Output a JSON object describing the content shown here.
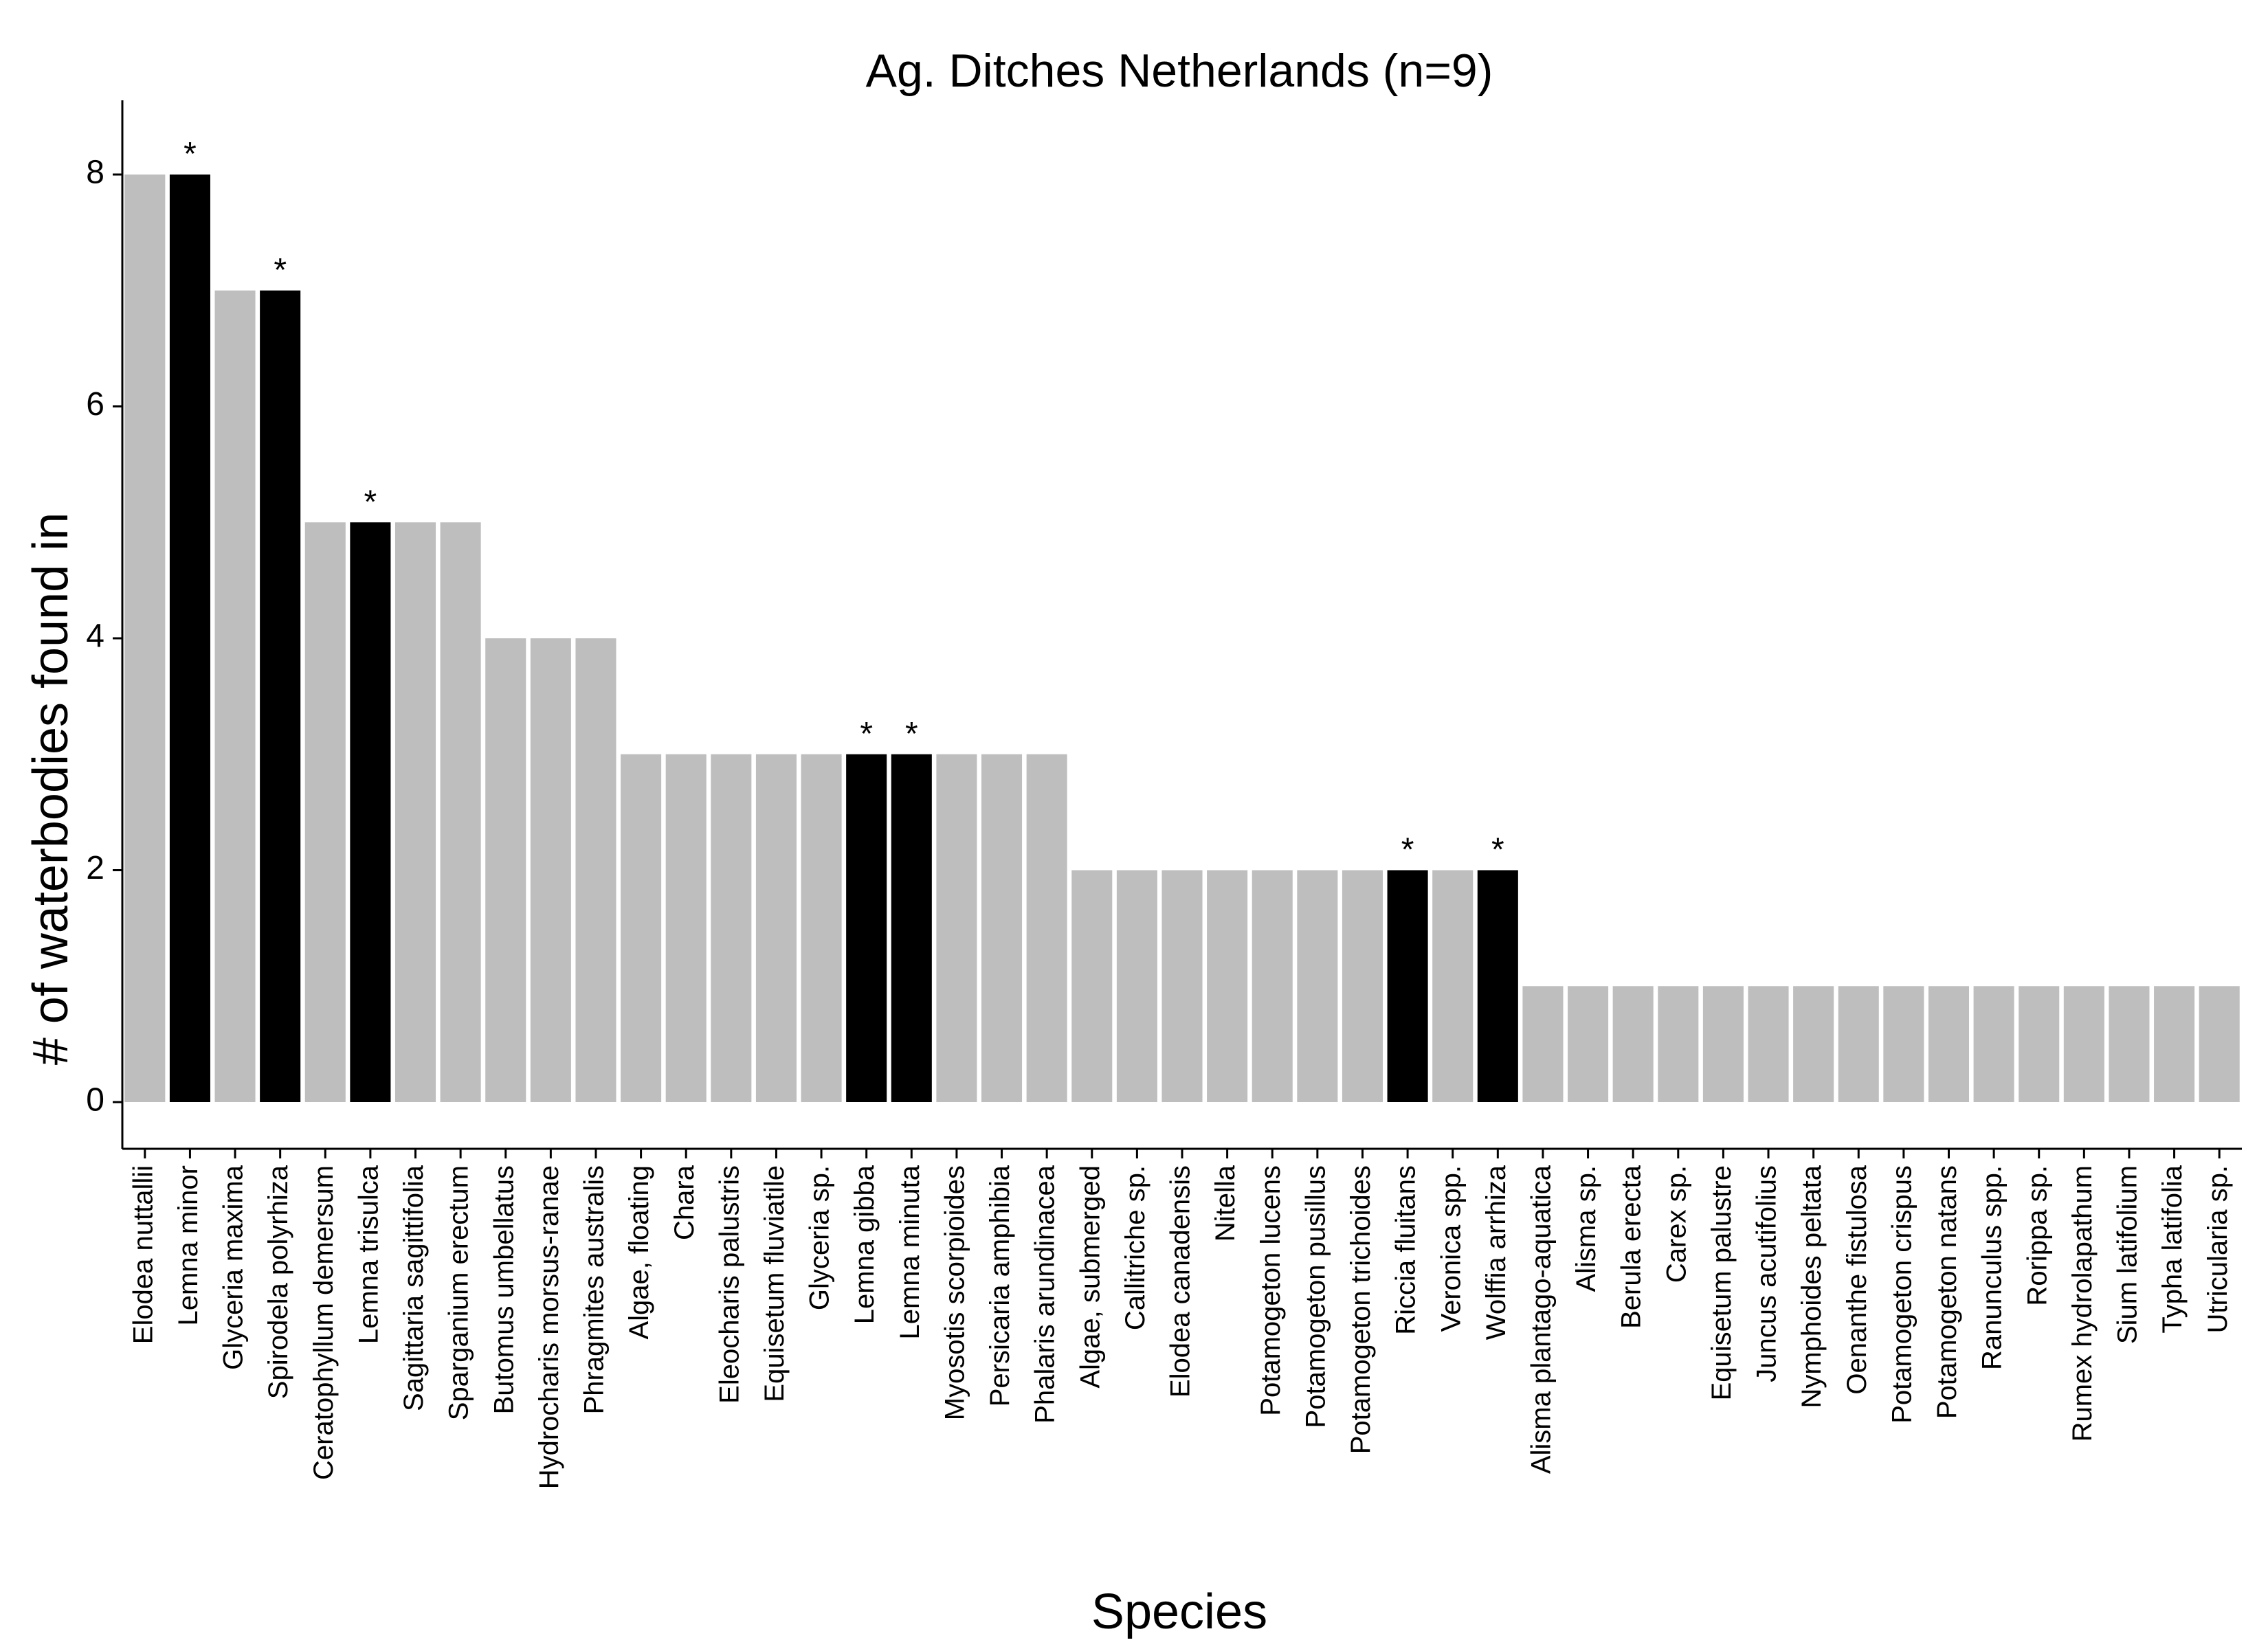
{
  "chart_data": {
    "type": "bar",
    "title": "Ag. Ditches Netherlands (n=9)",
    "xlabel": "Species",
    "ylabel": "# of waterbodies found in",
    "ylim": [
      0,
      8.6
    ],
    "yticks": [
      0,
      2,
      4,
      6,
      8
    ],
    "grid": false,
    "legend": "none",
    "colors": {
      "default": "#bebebe",
      "highlight": "#000000"
    },
    "marker_symbol": "*",
    "categories": [
      "Elodea nuttallii",
      "Lemna minor",
      "Glyceria maxima",
      "Spirodela polyrhiza",
      "Ceratophyllum demersum",
      "Lemna trisulca",
      "Sagittaria sagittifolia",
      "Sparganium erectum",
      "Butomus umbellatus",
      "Hydrocharis morsus-ranae",
      "Phragmites australis",
      "Algae, floating",
      "Chara",
      "Eleocharis palustris",
      "Equisetum fluviatile",
      "Glyceria sp.",
      "Lemna gibba",
      "Lemna minuta",
      "Myosotis scorpioides",
      "Persicaria amphibia",
      "Phalaris arundinacea",
      "Algae, submerged",
      "Callitriche sp.",
      "Elodea canadensis",
      "Nitella",
      "Potamogeton lucens",
      "Potamogeton pusillus",
      "Potamogeton trichoides",
      "Riccia fluitans",
      "Veronica spp.",
      "Wolffia arrhiza",
      "Alisma plantago-aquatica",
      "Alisma sp.",
      "Berula erecta",
      "Carex sp.",
      "Equisetum palustre",
      "Juncus acutifolius",
      "Nymphoides peltata",
      "Oenanthe fistulosa",
      "Potamogeton crispus",
      "Potamogeton natans",
      "Ranunculus spp.",
      "Rorippa sp.",
      "Rumex hydrolapathum",
      "Sium latifolium",
      "Typha latifolia",
      "Utricularia sp."
    ],
    "values": [
      8,
      8,
      7,
      7,
      5,
      5,
      5,
      5,
      4,
      4,
      4,
      3,
      3,
      3,
      3,
      3,
      3,
      3,
      3,
      3,
      3,
      2,
      2,
      2,
      2,
      2,
      2,
      2,
      2,
      2,
      2,
      1,
      1,
      1,
      1,
      1,
      1,
      1,
      1,
      1,
      1,
      1,
      1,
      1,
      1,
      1,
      1
    ],
    "highlighted": [
      false,
      true,
      false,
      true,
      false,
      true,
      false,
      false,
      false,
      false,
      false,
      false,
      false,
      false,
      false,
      false,
      true,
      true,
      false,
      false,
      false,
      false,
      false,
      false,
      false,
      false,
      false,
      false,
      true,
      false,
      true,
      false,
      false,
      false,
      false,
      false,
      false,
      false,
      false,
      false,
      false,
      false,
      false,
      false,
      false,
      false,
      false
    ]
  }
}
